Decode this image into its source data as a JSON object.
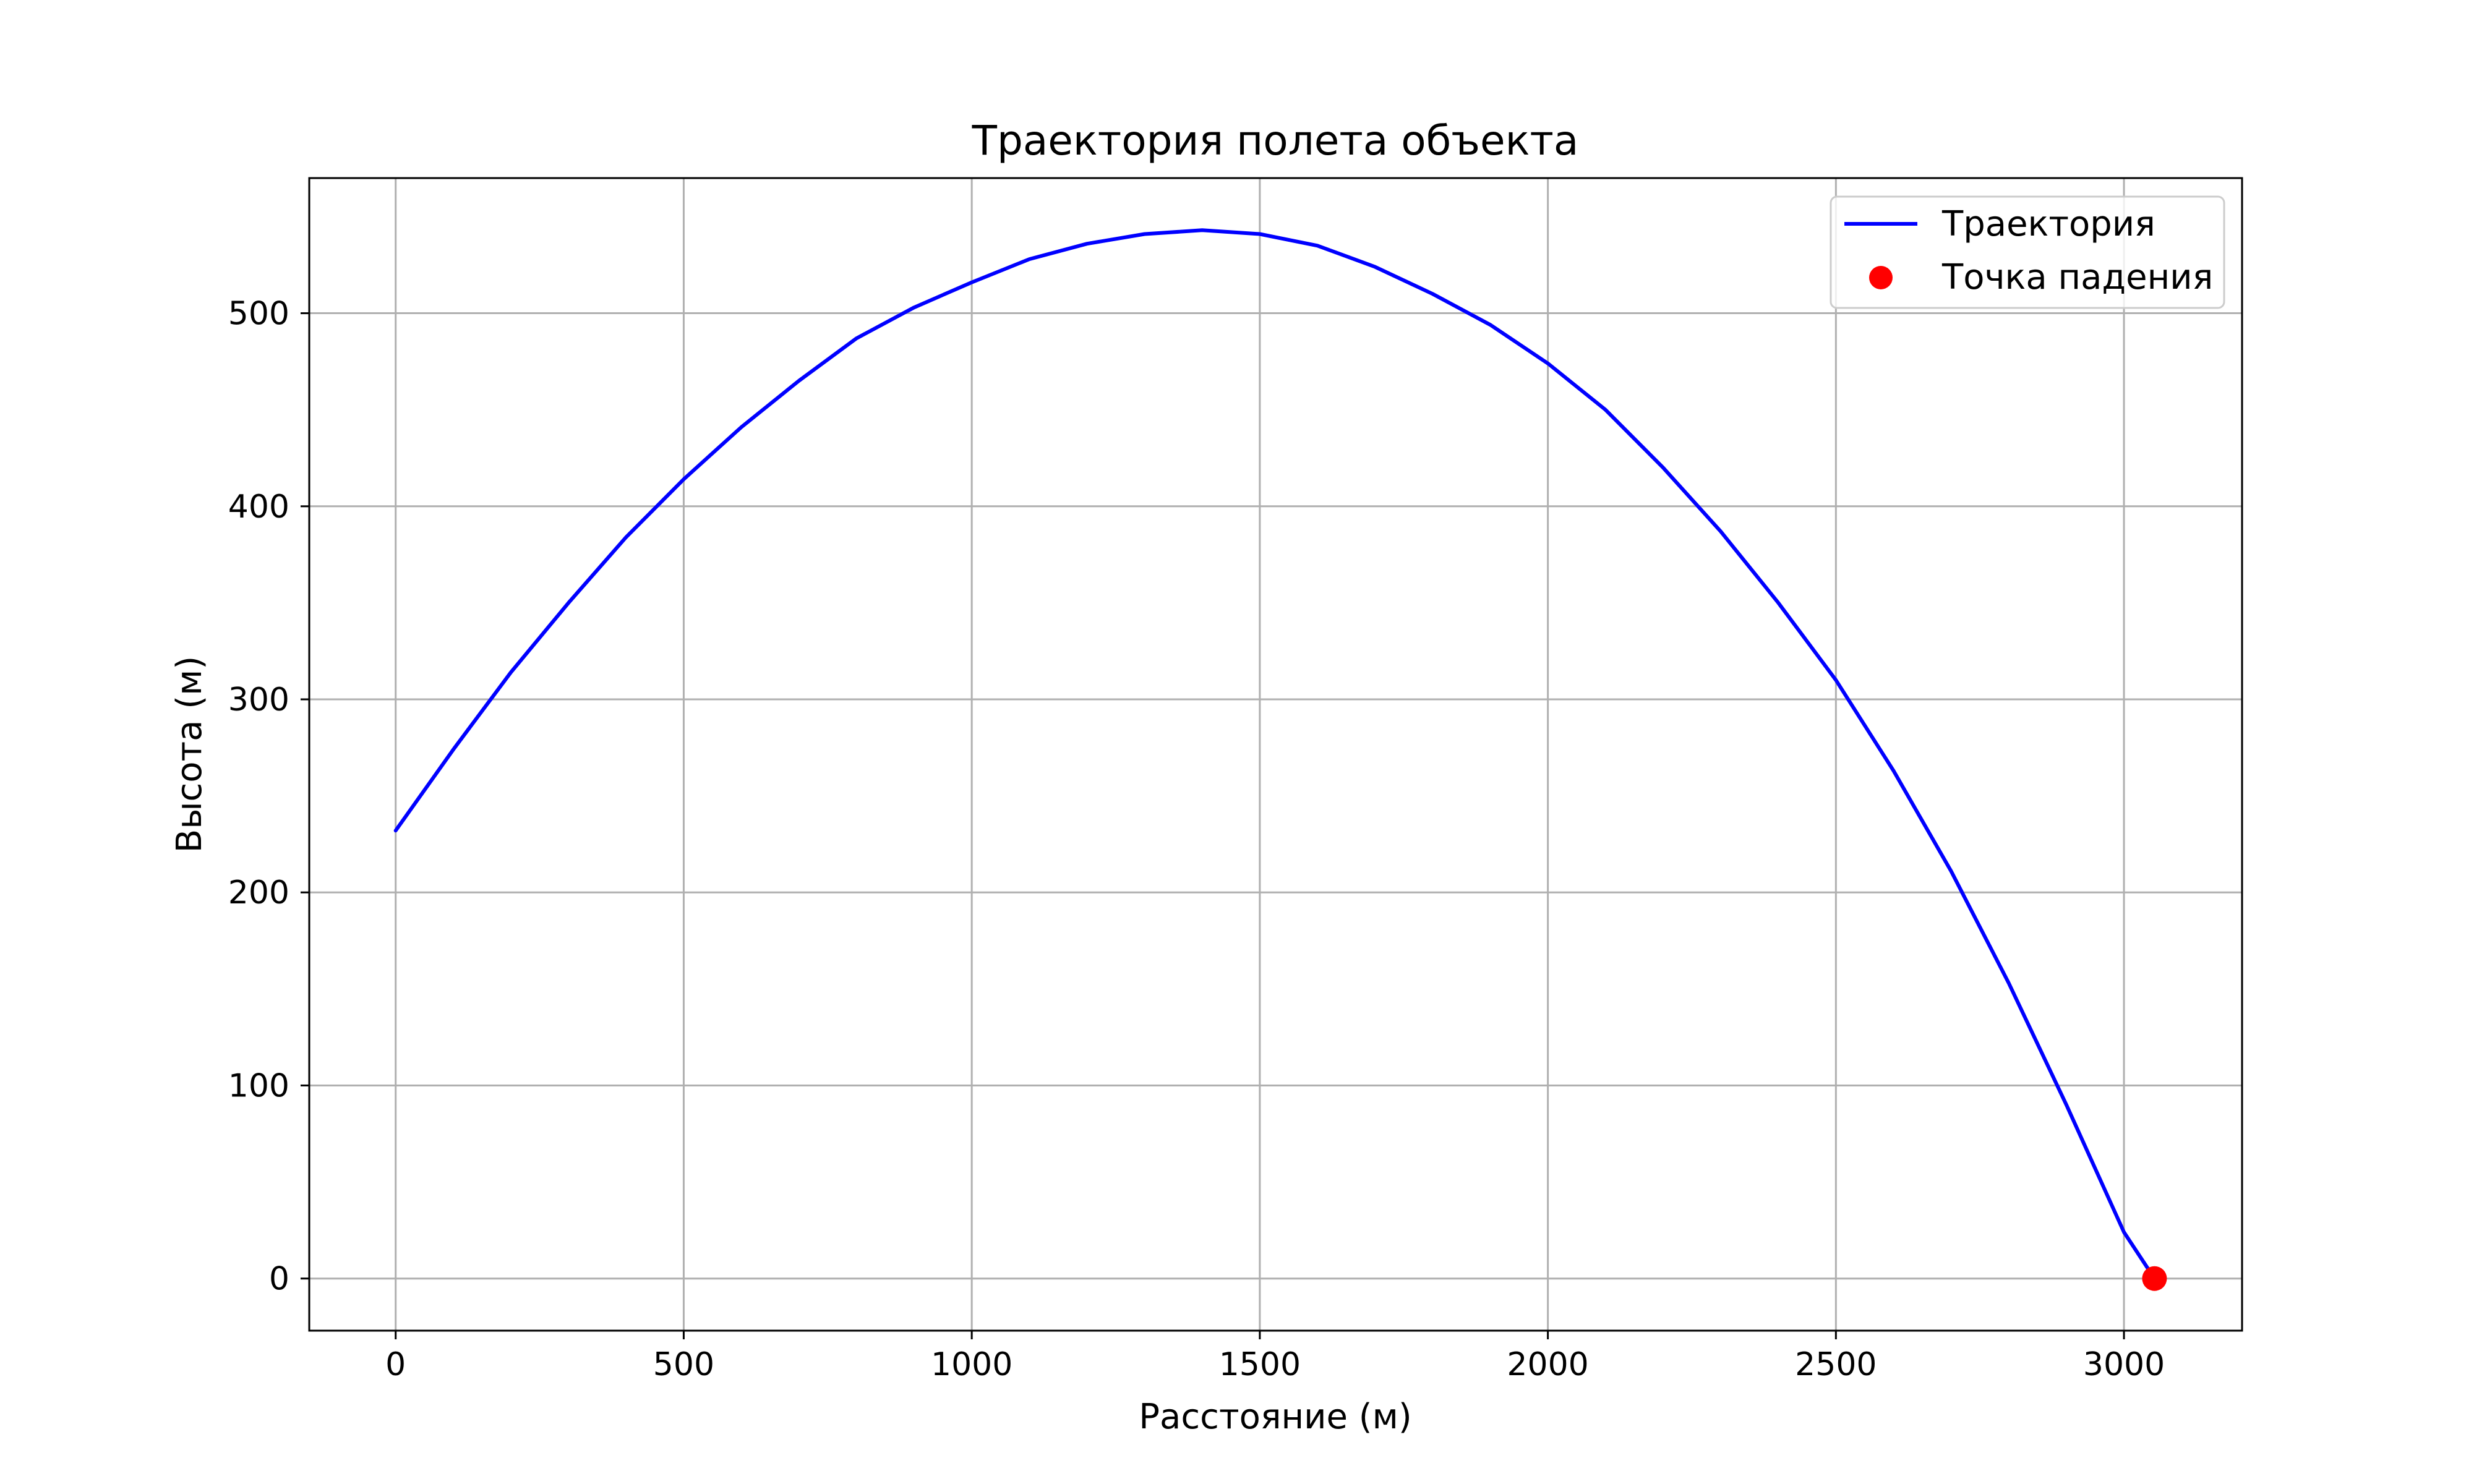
{
  "chart_data": {
    "type": "line",
    "title": "Траектория полета объекта",
    "xlabel": "Расстояние (м)",
    "ylabel": "Высота (м)",
    "xlim": [
      -150,
      3205
    ],
    "ylim": [
      -27,
      570
    ],
    "xticks": [
      0,
      500,
      1000,
      1500,
      2000,
      2500,
      3000
    ],
    "yticks": [
      0,
      100,
      200,
      300,
      400,
      500
    ],
    "grid": true,
    "legend_position": "top-right",
    "series": [
      {
        "name": "Траектория",
        "kind": "line",
        "color": "#0000ff",
        "x": [
          0,
          100,
          200,
          300,
          400,
          500,
          600,
          700,
          800,
          900,
          1000,
          1100,
          1200,
          1300,
          1400,
          1500,
          1600,
          1700,
          1800,
          1900,
          2000,
          2100,
          2200,
          2300,
          2400,
          2500,
          2600,
          2700,
          2800,
          2900,
          3000,
          3053
        ],
        "y": [
          232,
          274,
          314,
          350,
          384,
          414,
          441,
          465,
          487,
          503,
          516,
          528,
          536,
          541,
          543,
          541,
          535,
          524,
          510,
          494,
          474,
          450,
          420,
          387,
          350,
          310,
          263,
          211,
          153,
          90,
          24,
          0
        ]
      },
      {
        "name": "Точка падения",
        "kind": "scatter",
        "color": "#ff0000",
        "x": [
          3053
        ],
        "y": [
          0
        ]
      }
    ]
  }
}
